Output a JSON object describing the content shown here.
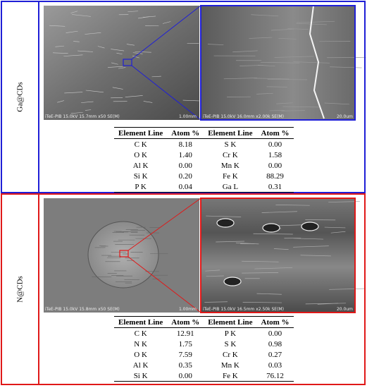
{
  "panels": [
    {
      "label": "Ga@CDs",
      "images": [
        {
          "caption": "iTeE-PIB 15.0kV 15.7mm x50 SE(M)",
          "scale": "1.00mm"
        },
        {
          "caption": "iTeE-PIB 15.0kV 16.0mm x2.00k SE(M)",
          "scale": "20.0um"
        }
      ],
      "table": {
        "header": [
          "Element Line",
          "Atom %",
          "Element Line",
          "Atom %"
        ],
        "rows": [
          [
            "C K",
            "8.18",
            "S K",
            "0.00"
          ],
          [
            "O K",
            "1.40",
            "Cr K",
            "1.58"
          ],
          [
            "Al K",
            "0.00",
            "Mn K",
            "0.00"
          ],
          [
            "Si K",
            "0.20",
            "Fe K",
            "88.29"
          ],
          [
            "P K",
            "0.04",
            "Ga L",
            "0.31"
          ]
        ]
      }
    },
    {
      "label": "N@CDs",
      "images": [
        {
          "caption": "iTeE-PIB 15.0kV 15.8mm x50 SE(M)",
          "scale": "1.00mm"
        },
        {
          "caption": "iTeE-PIB 15.0kV 16.5mm x2.50k SE(M)",
          "scale": "20.0um"
        }
      ],
      "table": {
        "header": [
          "Element Line",
          "Atom %",
          "Element Line",
          "Atom %"
        ],
        "rows": [
          [
            "C K",
            "12.91",
            "P K",
            "0.00"
          ],
          [
            "N K",
            "1.75",
            "S K",
            "0.98"
          ],
          [
            "O K",
            "7.59",
            "Cr K",
            "0.27"
          ],
          [
            "Al K",
            "0.35",
            "Mn K",
            "0.03"
          ],
          [
            "Si K",
            "0.00",
            "Fe K",
            "76.12"
          ]
        ]
      }
    }
  ]
}
